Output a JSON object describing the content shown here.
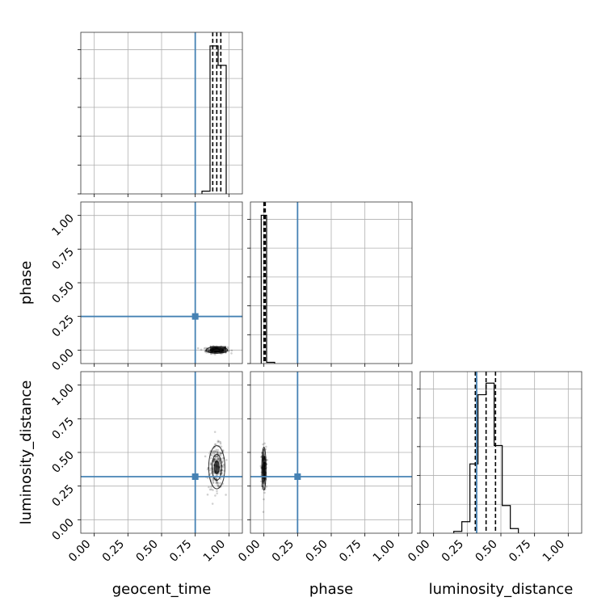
{
  "colors": {
    "truth": "#4682b4",
    "samples": "#000000"
  },
  "chart_data": {
    "type": "corner",
    "parameters": [
      "geocent_time",
      "phase",
      "luminosity_distance"
    ],
    "axis_labels": [
      "geocent_time",
      "phase",
      "luminosity_distance"
    ],
    "range": [
      -0.1,
      1.1
    ],
    "ticks": [
      0.0,
      0.25,
      0.5,
      0.75,
      1.0
    ],
    "tick_labels": [
      "0.00",
      "0.25",
      "0.50",
      "0.75",
      "1.00"
    ],
    "truths": [
      0.75,
      0.25,
      0.32
    ],
    "grid": true,
    "histograms": [
      {
        "name": "geocent_time",
        "bin_edges": [
          0.8,
          0.86,
          0.92,
          0.98
        ],
        "counts": [
          12,
          650,
          565
        ],
        "ymax": 710,
        "quantiles": [
          0.88,
          0.91,
          0.94
        ]
      },
      {
        "name": "phase",
        "bin_edges": [
          -0.02,
          0.02,
          0.08
        ],
        "counts": [
          1000,
          8
        ],
        "ymax": 1090,
        "quantiles": [
          0.0,
          0.005,
          0.01
        ]
      },
      {
        "name": "luminosity_distance",
        "bin_edges": [
          0.15,
          0.21,
          0.27,
          0.33,
          0.39,
          0.45,
          0.51,
          0.57,
          0.63
        ],
        "counts": [
          8,
          50,
          300,
          600,
          650,
          380,
          120,
          20
        ],
        "ymax": 700,
        "quantiles": [
          0.31,
          0.39,
          0.46
        ]
      }
    ],
    "scatter_panels": [
      {
        "x": "geocent_time",
        "y": "phase",
        "center": [
          0.91,
          0.0
        ],
        "spread": [
          0.04,
          0.012
        ],
        "density_blocks": [
          {
            "x0": 0.86,
            "x1": 0.98,
            "y0": -0.02,
            "y1": 0.03
          }
        ]
      },
      {
        "x": "geocent_time",
        "y": "luminosity_distance",
        "center": [
          0.91,
          0.39
        ],
        "spread": [
          0.03,
          0.08
        ]
      },
      {
        "x": "phase",
        "y": "luminosity_distance",
        "center": [
          0.0,
          0.38
        ],
        "spread": [
          0.008,
          0.08
        ]
      }
    ]
  }
}
